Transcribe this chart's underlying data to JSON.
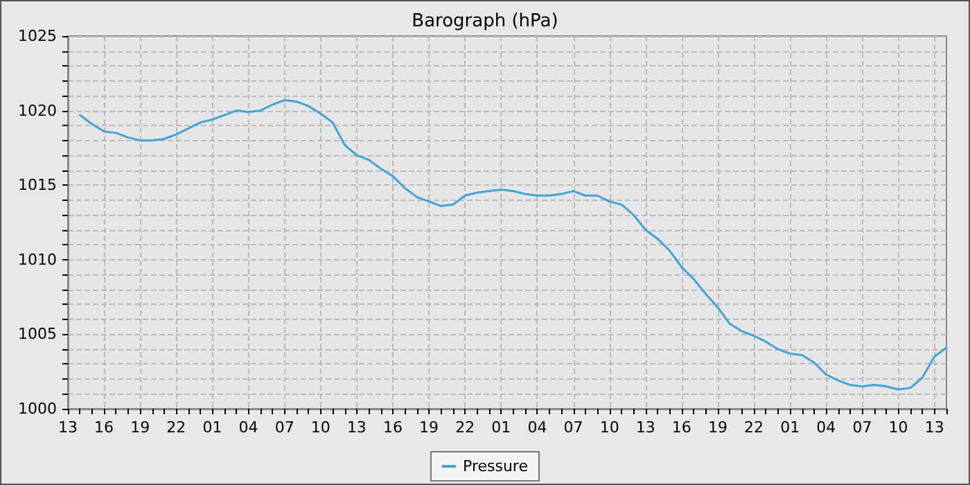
{
  "chart_data": {
    "type": "line",
    "title": "Barograph (hPa)",
    "categories": [
      "13",
      null,
      null,
      "16",
      null,
      null,
      "19",
      null,
      null,
      "22",
      null,
      null,
      "01",
      null,
      null,
      "04",
      null,
      null,
      "07",
      null,
      null,
      "10",
      null,
      null,
      "13",
      null,
      null,
      "16",
      null,
      null,
      "19",
      null,
      null,
      "22",
      null,
      null,
      "01",
      null,
      null,
      "04",
      null,
      null,
      "07",
      null,
      null,
      "10",
      null,
      null,
      "13",
      null,
      null,
      "16",
      null,
      null,
      "19",
      null,
      null,
      "22",
      null,
      null,
      "01",
      null,
      null,
      "04",
      null,
      null,
      "07",
      null,
      null,
      "10",
      null,
      null,
      "13",
      null
    ],
    "series": [
      {
        "name": "Pressure",
        "color": "#3ea4dd",
        "values": [
          null,
          1019.7,
          1019.1,
          1018.6,
          1018.5,
          1018.2,
          1018.0,
          1018.0,
          1018.1,
          1018.4,
          1018.8,
          1019.2,
          1019.4,
          1019.7,
          1020.0,
          1019.9,
          1020.0,
          1020.4,
          1020.7,
          1020.6,
          1020.3,
          1019.8,
          1019.2,
          1017.7,
          1017.0,
          1016.7,
          1016.1,
          1015.6,
          1014.8,
          1014.2,
          1013.9,
          1013.6,
          1013.7,
          1014.3,
          1014.5,
          1014.6,
          1014.7,
          1014.6,
          1014.4,
          1014.3,
          1014.3,
          1014.4,
          1014.6,
          1014.3,
          1014.3,
          1013.9,
          1013.7,
          1013.0,
          1012.0,
          1011.4,
          1010.6,
          1009.5,
          1008.7,
          1007.7,
          1006.8,
          1005.7,
          1005.2,
          1004.9,
          1004.5,
          1004.0,
          1003.7,
          1003.6,
          1003.1,
          1002.3,
          1001.9,
          1001.6,
          1001.5,
          1001.6,
          1001.5,
          1001.3,
          1001.4,
          1002.1,
          1003.5,
          1004.1
        ]
      }
    ],
    "ylim": [
      1000,
      1025
    ],
    "yticks": [
      1000,
      {
        "value": 1001,
        "label": null
      },
      {
        "value": 1002,
        "label": null
      },
      {
        "value": 1003,
        "label": null
      },
      {
        "value": 1004,
        "label": null
      },
      1005,
      {
        "value": 1006,
        "label": null
      },
      {
        "value": 1007,
        "label": null
      },
      {
        "value": 1008,
        "label": null
      },
      {
        "value": 1009,
        "label": null
      },
      1010,
      {
        "value": 1011,
        "label": null
      },
      {
        "value": 1012,
        "label": null
      },
      {
        "value": 1013,
        "label": null
      },
      {
        "value": 1014,
        "label": null
      },
      1015,
      {
        "value": 1016,
        "label": null
      },
      {
        "value": 1017,
        "label": null
      },
      {
        "value": 1018,
        "label": null
      },
      {
        "value": 1019,
        "label": null
      },
      1020,
      {
        "value": 1021,
        "label": null
      },
      {
        "value": 1022,
        "label": null
      },
      {
        "value": 1023,
        "label": null
      },
      {
        "value": 1024,
        "label": null
      },
      1025
    ],
    "grid": true,
    "legend": "bottom",
    "marker": "none",
    "line_style": "solid"
  }
}
